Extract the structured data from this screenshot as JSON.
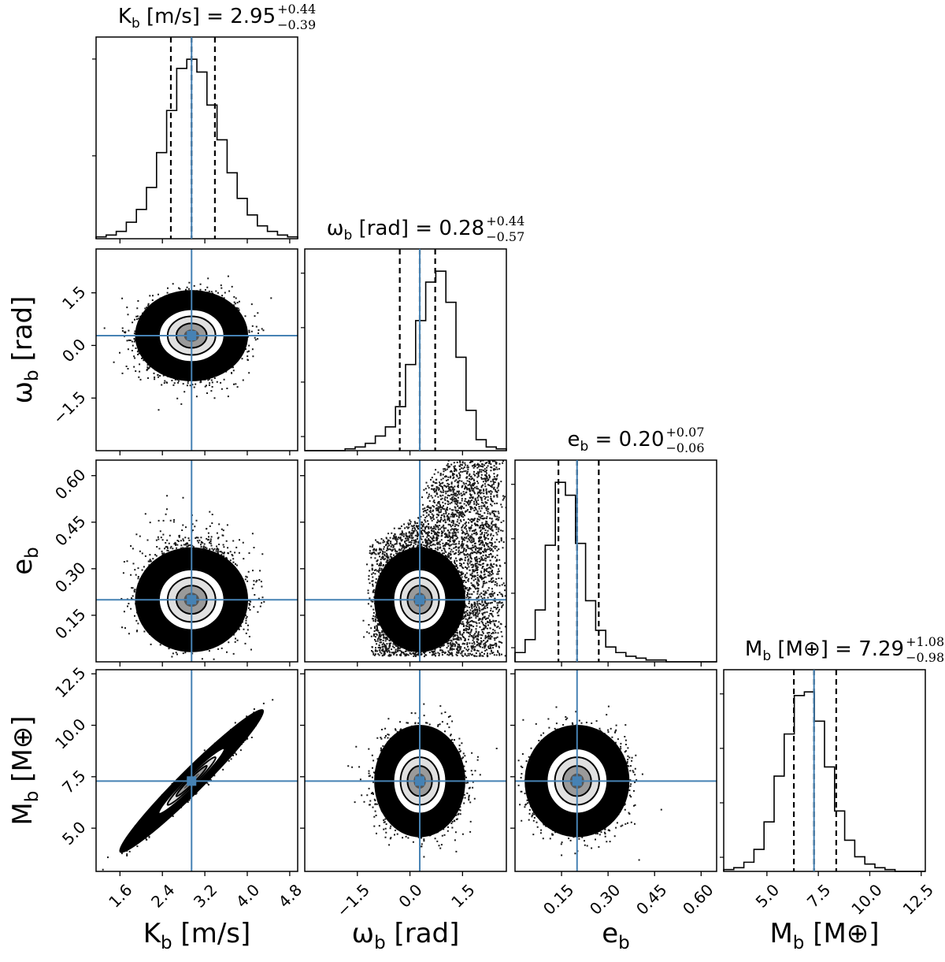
{
  "chart_data": {
    "type": "corner",
    "truth_color": "#4682b4",
    "hist_color": "#000000",
    "params": [
      {
        "key": "K",
        "label_base": "K",
        "label_sub": "b",
        "label_unit": " [m/s]",
        "median": 2.95,
        "plus": 0.44,
        "minus": 0.39,
        "title_eq": " = 2.95",
        "title_plus": "+0.44",
        "title_minus": "−0.39",
        "range": [
          1.15,
          4.95
        ],
        "ticks": [
          1.6,
          2.4,
          3.2,
          4.0,
          4.8
        ],
        "tick_labels": [
          "1.6",
          "2.4",
          "3.2",
          "4.0",
          "4.8"
        ],
        "sigma": 0.41,
        "hist": [
          1,
          2,
          4,
          9,
          16,
          28,
          47,
          70,
          93,
          98,
          91,
          73,
          54,
          36,
          22,
          13,
          7,
          4,
          2,
          1
        ]
      },
      {
        "key": "w",
        "label_base": "ω",
        "label_sub": "b",
        "label_unit": " [rad]",
        "median": 0.28,
        "plus": 0.44,
        "minus": 0.57,
        "title_eq": " = 0.28",
        "title_plus": "+0.44",
        "title_minus": "−0.57",
        "range": [
          -3.0,
          2.75
        ],
        "ticks": [
          -1.5,
          0.0,
          1.5
        ],
        "tick_labels": [
          "−1.5",
          "0.0",
          "1.5"
        ],
        "sigma": 0.5,
        "hist": [
          0,
          0,
          0,
          0,
          1,
          2,
          4,
          8,
          13,
          24,
          47,
          71,
          92,
          98,
          81,
          51,
          22,
          6,
          2,
          1
        ]
      },
      {
        "key": "e",
        "label_base": "e",
        "label_sub": "b",
        "label_unit": "",
        "median": 0.2,
        "plus": 0.07,
        "minus": 0.06,
        "title_eq": " = 0.20",
        "title_plus": "+0.07",
        "title_minus": "−0.06",
        "range": [
          0.0,
          0.65
        ],
        "ticks": [
          0.15,
          0.3,
          0.45,
          0.6
        ],
        "tick_labels": [
          "0.15",
          "0.30",
          "0.45",
          "0.60"
        ],
        "sigma": 0.065,
        "hist": [
          5,
          12,
          28,
          63,
          97,
          90,
          64,
          33,
          17,
          8,
          5,
          3,
          2,
          1,
          1,
          0,
          0,
          0,
          0,
          0
        ]
      },
      {
        "key": "M",
        "label_base": "M",
        "label_sub": "b",
        "label_unit": " [M⊕]",
        "median": 7.29,
        "plus": 1.08,
        "minus": 0.98,
        "title_eq": " = 7.29",
        "title_plus": "+1.08",
        "title_minus": "−0.98",
        "range": [
          2.9,
          12.7
        ],
        "ticks": [
          5.0,
          7.5,
          10.0,
          12.5
        ],
        "tick_labels": [
          "5.0",
          "7.5",
          "10.0",
          "12.5"
        ],
        "sigma": 1.05,
        "hist": [
          1,
          2,
          5,
          12,
          27,
          52,
          75,
          96,
          98,
          82,
          57,
          33,
          17,
          8,
          4,
          2,
          1,
          0,
          0,
          0
        ]
      }
    ]
  }
}
